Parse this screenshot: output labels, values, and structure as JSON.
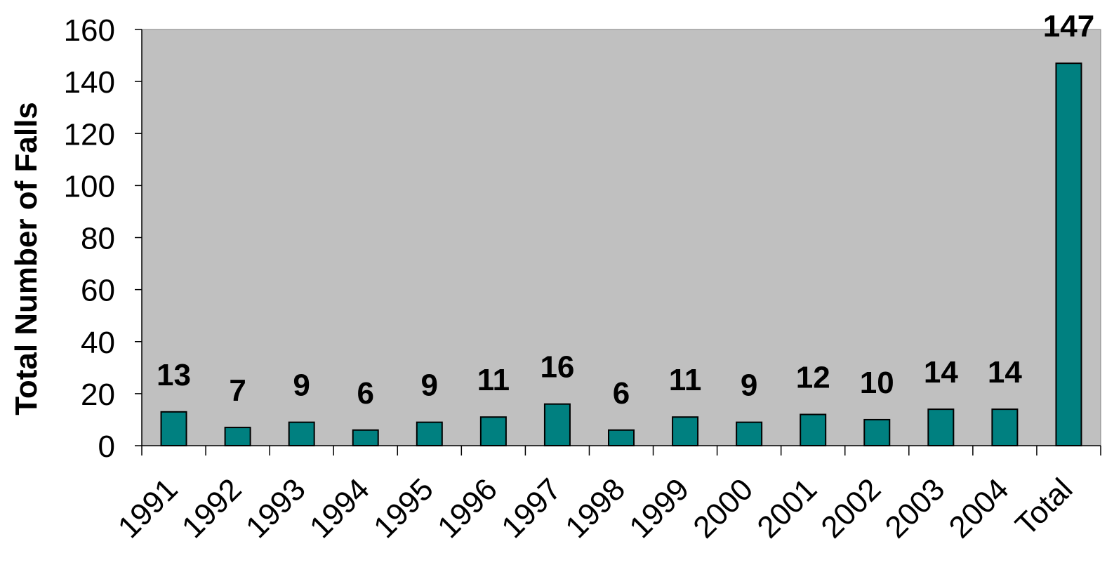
{
  "chart_data": {
    "type": "bar",
    "ylabel": "Total Number of Falls",
    "xlabel": "",
    "categories": [
      "1991",
      "1992",
      "1993",
      "1994",
      "1995",
      "1996",
      "1997",
      "1998",
      "1999",
      "2000",
      "2001",
      "2002",
      "2003",
      "2004",
      "Total"
    ],
    "values": [
      13,
      7,
      9,
      6,
      9,
      11,
      16,
      6,
      11,
      9,
      12,
      10,
      14,
      14,
      147
    ],
    "ylim": [
      0,
      160
    ],
    "yticks": [
      0,
      20,
      40,
      60,
      80,
      100,
      120,
      140,
      160
    ],
    "grid": false,
    "data_labels": true,
    "colors": {
      "bar": "#008080",
      "plot_background": "#c0c0c0",
      "bar_outline": "#000000"
    }
  }
}
